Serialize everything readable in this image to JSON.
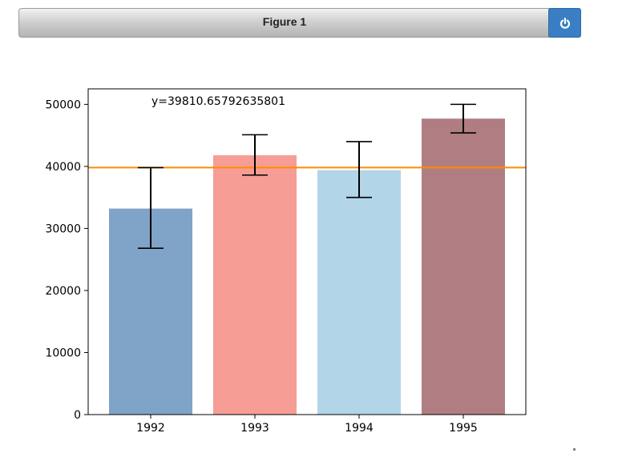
{
  "window": {
    "title": "Figure 1",
    "close_icon": "power-icon",
    "close_color": "#3a7fc3"
  },
  "chart_data": {
    "type": "bar",
    "categories": [
      "1992",
      "1993",
      "1994",
      "1995"
    ],
    "values": [
      33200,
      41800,
      39400,
      47700
    ],
    "error_low": [
      26800,
      38600,
      35000,
      45400
    ],
    "error_high": [
      39800,
      45100,
      44000,
      50000
    ],
    "colors": [
      "#80a3c8",
      "#f69d95",
      "#b3d5e8",
      "#b07e82"
    ],
    "ylim": [
      0,
      52500
    ],
    "yticks": [
      0,
      10000,
      20000,
      30000,
      40000,
      50000
    ],
    "ytick_labels": [
      "0",
      "10000",
      "20000",
      "30000",
      "40000",
      "50000"
    ],
    "hline": {
      "value": 39810.65792635801,
      "color": "#ff8c00"
    },
    "annotation": "y=39810.65792635801",
    "title": "",
    "xlabel": "",
    "ylabel": "",
    "grid": false,
    "legend": "none"
  }
}
